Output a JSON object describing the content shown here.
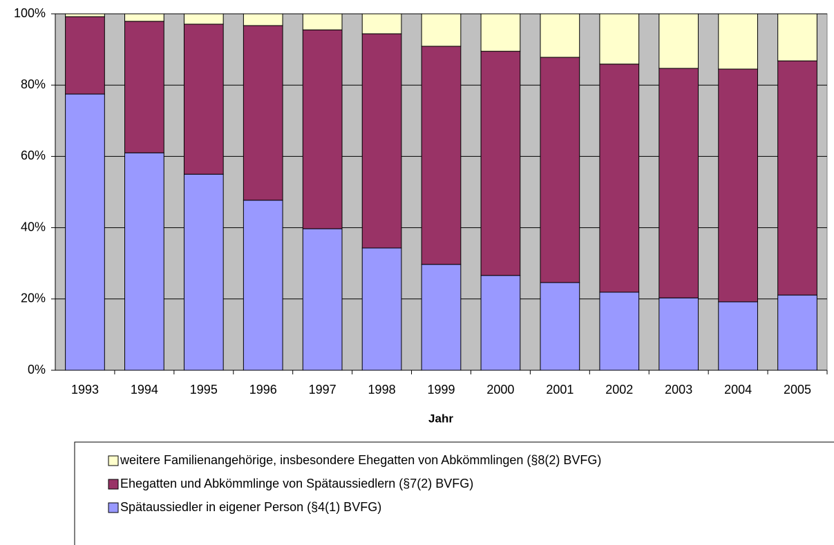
{
  "chart_data": {
    "type": "stacked_bar_100",
    "x_label": "Jahr",
    "categories": [
      "1993",
      "1994",
      "1995",
      "1996",
      "1997",
      "1998",
      "1999",
      "2000",
      "2001",
      "2002",
      "2003",
      "2004",
      "2005"
    ],
    "series": [
      {
        "name": "Spätaussiedler in eigener Person (§4(1) BVFG)",
        "color": "#9999ff",
        "values": [
          77.5,
          61.0,
          55.0,
          47.7,
          39.7,
          34.3,
          29.7,
          26.6,
          24.6,
          21.9,
          20.3,
          19.2,
          21.1
        ]
      },
      {
        "name": "Ehegatten und Abkömmlinge von Spätaussiedlern (§7(2) BVFG)",
        "color": "#993366",
        "values": [
          21.7,
          36.9,
          42.1,
          49.0,
          55.8,
          60.1,
          61.2,
          62.9,
          63.2,
          64.0,
          64.4,
          65.3,
          65.7
        ]
      },
      {
        "name": "weitere Familienangehörige, insbesondere Ehegatten von Abkömmlingen (§8(2) BVFG)",
        "color": "#ffffcc",
        "values": [
          0.8,
          2.1,
          2.9,
          3.3,
          4.5,
          5.6,
          9.1,
          10.5,
          12.2,
          14.1,
          15.3,
          15.5,
          13.2
        ]
      }
    ],
    "ylim": [
      0,
      100
    ],
    "yticks": [
      {
        "value": 0,
        "label": "0%"
      },
      {
        "value": 20,
        "label": "20%"
      },
      {
        "value": 40,
        "label": "40%"
      },
      {
        "value": 60,
        "label": "60%"
      },
      {
        "value": 80,
        "label": "80%"
      },
      {
        "value": 100,
        "label": "100%"
      }
    ],
    "grid": true,
    "plot_background": "#c0c0c0"
  }
}
